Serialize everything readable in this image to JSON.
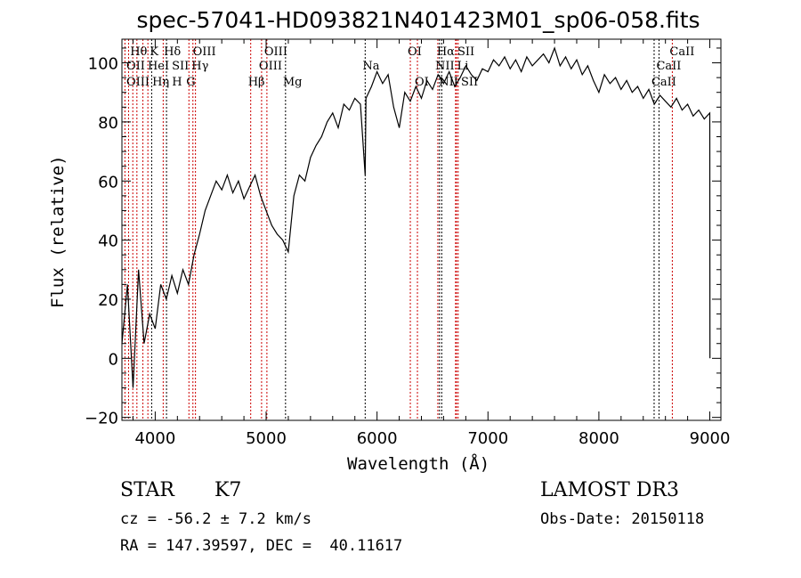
{
  "chart_data": {
    "type": "line",
    "title": "spec-57041-HD093821N401423M01_sp06-058.fits",
    "xlabel": "Wavelength (Å)",
    "ylabel": "Flux (relative)",
    "xlim": [
      3700,
      9100
    ],
    "ylim": [
      -21,
      108
    ],
    "xticks": [
      4000,
      5000,
      6000,
      7000,
      8000,
      9000
    ],
    "yticks": [
      -20,
      0,
      20,
      40,
      60,
      80,
      100
    ],
    "grid": false,
    "series": [
      {
        "name": "spectrum",
        "x": [
          3700,
          3750,
          3800,
          3850,
          3900,
          3950,
          4000,
          4050,
          4100,
          4150,
          4200,
          4250,
          4300,
          4350,
          4400,
          4450,
          4500,
          4550,
          4600,
          4650,
          4700,
          4750,
          4800,
          4850,
          4900,
          4950,
          5000,
          5050,
          5100,
          5150,
          5200,
          5250,
          5300,
          5350,
          5400,
          5450,
          5500,
          5550,
          5600,
          5650,
          5700,
          5750,
          5800,
          5850,
          5893,
          5900,
          5950,
          6000,
          6050,
          6100,
          6150,
          6200,
          6250,
          6300,
          6350,
          6400,
          6450,
          6500,
          6550,
          6600,
          6650,
          6700,
          6750,
          6800,
          6850,
          6900,
          6950,
          7000,
          7050,
          7100,
          7150,
          7200,
          7250,
          7300,
          7350,
          7400,
          7450,
          7500,
          7550,
          7600,
          7650,
          7700,
          7750,
          7800,
          7850,
          7900,
          7950,
          8000,
          8050,
          8100,
          8150,
          8200,
          8250,
          8300,
          8350,
          8400,
          8450,
          8500,
          8550,
          8600,
          8650,
          8700,
          8750,
          8800,
          8850,
          8900,
          8950,
          9000,
          9001
        ],
        "y": [
          5,
          25,
          -10,
          30,
          5,
          15,
          10,
          25,
          20,
          28,
          22,
          30,
          25,
          35,
          42,
          50,
          55,
          60,
          57,
          62,
          56,
          60,
          54,
          58,
          62,
          55,
          50,
          45,
          42,
          40,
          36,
          55,
          62,
          60,
          68,
          72,
          75,
          80,
          83,
          78,
          86,
          84,
          88,
          86,
          62,
          88,
          92,
          97,
          93,
          96,
          85,
          78,
          90,
          87,
          92,
          88,
          94,
          91,
          96,
          93,
          97,
          92,
          95,
          99,
          96,
          94,
          98,
          97,
          101,
          99,
          102,
          98,
          101,
          97,
          102,
          99,
          101,
          103,
          100,
          105,
          99,
          102,
          98,
          101,
          96,
          99,
          94,
          90,
          96,
          93,
          95,
          91,
          94,
          90,
          92,
          88,
          91,
          86,
          89,
          87,
          85,
          88,
          84,
          86,
          82,
          84,
          81,
          83,
          0
        ]
      }
    ],
    "line_markers": [
      {
        "label": "Hθ",
        "wave": 3798,
        "row": 1,
        "color": "#cc0000"
      },
      {
        "label": "K",
        "wave": 3934,
        "row": 1,
        "color": "#cc0000"
      },
      {
        "label": "Hδ",
        "wave": 4102,
        "row": 1,
        "color": "#000000"
      },
      {
        "label": "OIII",
        "wave": 4363,
        "row": 1,
        "color": "#cc0000"
      },
      {
        "label": "OIII",
        "wave": 5007,
        "row": 1,
        "color": "#cc0000"
      },
      {
        "label": "OI",
        "wave": 6300,
        "row": 1,
        "color": "#cc0000"
      },
      {
        "label": "Hα",
        "wave": 6563,
        "row": 1,
        "color": "#000000"
      },
      {
        "label": "SII",
        "wave": 6716,
        "row": 1,
        "color": "#cc0000"
      },
      {
        "label": "CaII",
        "wave": 8662,
        "row": 1,
        "color": "#cc0000"
      },
      {
        "label": "OII",
        "wave": 3727,
        "row": 2,
        "color": "#cc0000"
      },
      {
        "label": "HeI",
        "wave": 3889,
        "row": 2,
        "color": "#cc0000"
      },
      {
        "label": "SII",
        "wave": 4072,
        "row": 2,
        "color": "#cc0000"
      },
      {
        "label": "Hγ",
        "wave": 4340,
        "row": 2,
        "color": "#cc0000"
      },
      {
        "label": "OIII",
        "wave": 4959,
        "row": 2,
        "color": "#cc0000"
      },
      {
        "label": "Na",
        "wave": 5893,
        "row": 2,
        "color": "#000000"
      },
      {
        "label": "NII",
        "wave": 6548,
        "row": 2,
        "color": "#cc0000"
      },
      {
        "label": "Li",
        "wave": 6708,
        "row": 2,
        "color": "#cc0000"
      },
      {
        "label": "CaII",
        "wave": 8542,
        "row": 2,
        "color": "#000000"
      },
      {
        "label": "OIII",
        "wave": 3760,
        "row": 3,
        "color": "#cc0000"
      },
      {
        "label": "Hη",
        "wave": 3835,
        "row": 3,
        "color": "#cc0000"
      },
      {
        "label": "H",
        "wave": 3968,
        "row": 3,
        "color": "#000000"
      },
      {
        "label": "G",
        "wave": 4304,
        "row": 3,
        "color": "#cc0000"
      },
      {
        "label": "Hβ",
        "wave": 4861,
        "row": 3,
        "color": "#cc0000"
      },
      {
        "label": "Mg",
        "wave": 5175,
        "row": 3,
        "color": "#000000"
      },
      {
        "label": "OI",
        "wave": 6364,
        "row": 3,
        "color": "#cc0000"
      },
      {
        "label": "NII",
        "wave": 6583,
        "row": 3,
        "color": "#000000"
      },
      {
        "label": "SII",
        "wave": 6731,
        "row": 3,
        "color": "#cc0000"
      },
      {
        "label": "CaII",
        "wave": 8498,
        "row": 3,
        "color": "#000000"
      }
    ]
  },
  "info": {
    "class": "STAR",
    "subclass": "K7",
    "survey": "LAMOST DR3",
    "cz": "cz = -56.2 ± 7.2 km/s",
    "obs_date": "Obs-Date: 20150118",
    "radec": "RA = 147.39597, DEC =  40.11617"
  }
}
